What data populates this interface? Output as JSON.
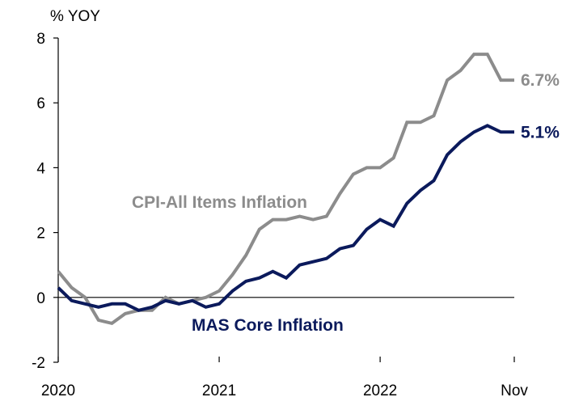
{
  "chart_data": {
    "type": "line",
    "ylabel": "% YOY",
    "ylim": [
      -2,
      8
    ],
    "yticks": [
      -2,
      0,
      2,
      4,
      6,
      8
    ],
    "xlim": [
      "2020-01",
      "2022-11"
    ],
    "xtick_labels": [
      {
        "label": "2020",
        "x": "2020-01"
      },
      {
        "label": "2021",
        "x": "2021-01"
      },
      {
        "label": "2022",
        "x": "2022-01"
      },
      {
        "label": "Nov",
        "x": "2022-11"
      }
    ],
    "grid": false,
    "x": [
      "2020-01",
      "2020-02",
      "2020-03",
      "2020-04",
      "2020-05",
      "2020-06",
      "2020-07",
      "2020-08",
      "2020-09",
      "2020-10",
      "2020-11",
      "2020-12",
      "2021-01",
      "2021-02",
      "2021-03",
      "2021-04",
      "2021-05",
      "2021-06",
      "2021-07",
      "2021-08",
      "2021-09",
      "2021-10",
      "2021-11",
      "2021-12",
      "2022-01",
      "2022-02",
      "2022-03",
      "2022-04",
      "2022-05",
      "2022-06",
      "2022-07",
      "2022-08",
      "2022-09",
      "2022-10",
      "2022-11"
    ],
    "series": [
      {
        "name": "CPI-All Items Inflation",
        "color": "#8c8c8c",
        "end_label": "6.7%",
        "values": [
          0.8,
          0.3,
          0.0,
          -0.7,
          -0.8,
          -0.5,
          -0.4,
          -0.4,
          0.0,
          -0.2,
          -0.1,
          0.0,
          0.2,
          0.7,
          1.3,
          2.1,
          2.4,
          2.4,
          2.5,
          2.4,
          2.5,
          3.2,
          3.8,
          4.0,
          4.0,
          4.3,
          5.4,
          5.4,
          5.6,
          6.7,
          7.0,
          7.5,
          7.5,
          6.7,
          6.7
        ]
      },
      {
        "name": "MAS Core Inflation",
        "color": "#0b1a5c",
        "end_label": "5.1%",
        "values": [
          0.3,
          -0.1,
          -0.2,
          -0.3,
          -0.2,
          -0.2,
          -0.4,
          -0.3,
          -0.1,
          -0.2,
          -0.1,
          -0.3,
          -0.2,
          0.2,
          0.5,
          0.6,
          0.8,
          0.6,
          1.0,
          1.1,
          1.2,
          1.5,
          1.6,
          2.1,
          2.4,
          2.2,
          2.9,
          3.3,
          3.6,
          4.4,
          4.8,
          5.1,
          5.3,
          5.1,
          5.1
        ]
      }
    ]
  }
}
